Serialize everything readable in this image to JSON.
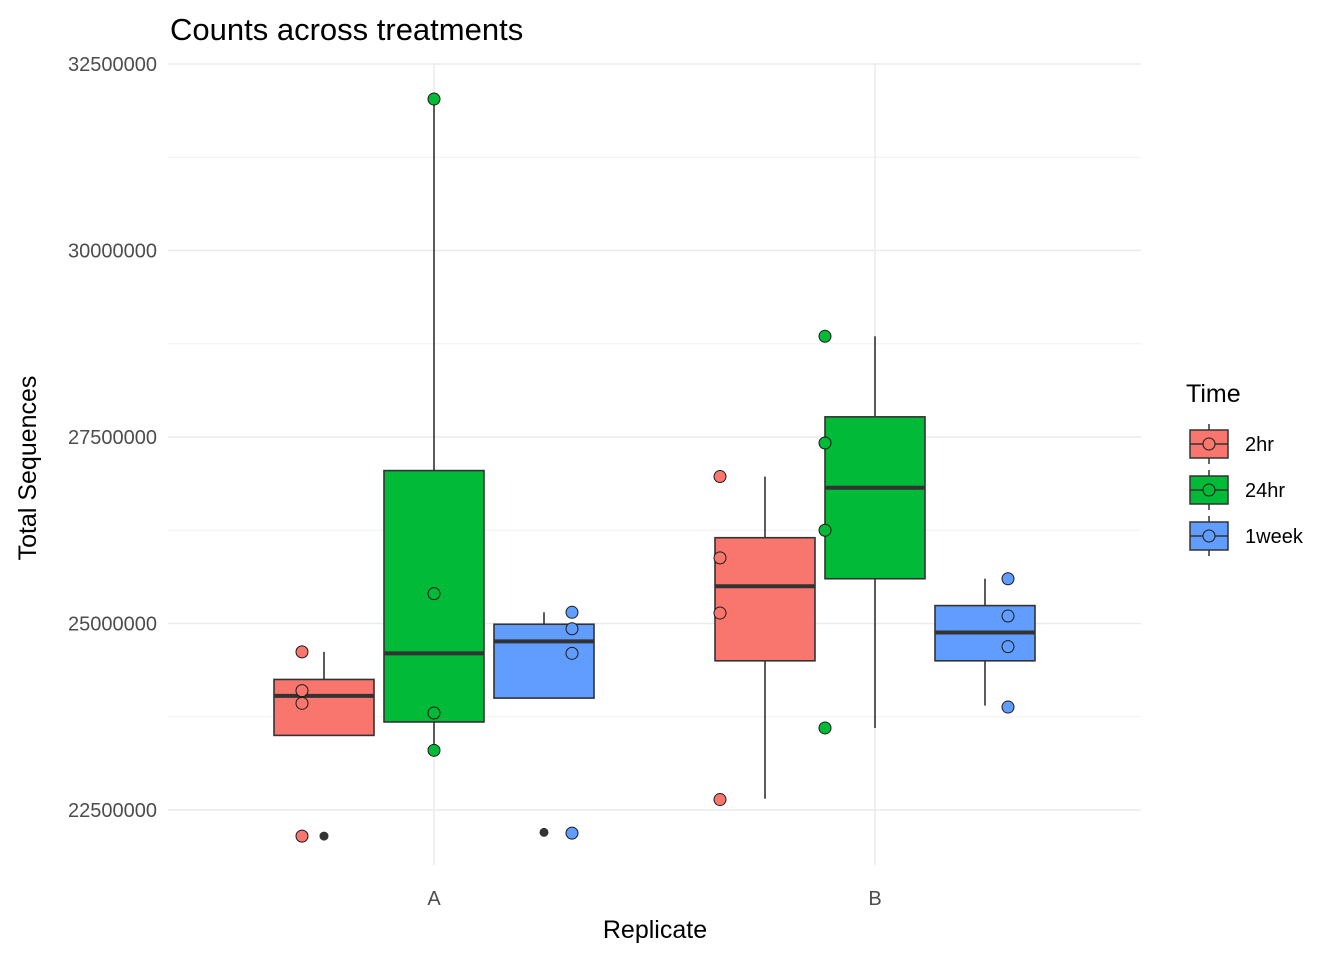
{
  "chart_data": {
    "type": "box",
    "title": "Counts across treatments",
    "xlabel": "Replicate",
    "ylabel": "Total Sequences",
    "categories": [
      "A",
      "B"
    ],
    "ylim": [
      21800000,
      32600000
    ],
    "yticks": [
      22500000,
      25000000,
      27500000,
      30000000,
      32500000
    ],
    "ytick_labels": [
      "22500000",
      "25000000",
      "27500000",
      "30000000",
      "32500000"
    ],
    "grid": true,
    "legend": {
      "title": "Time",
      "position": "right"
    },
    "series": [
      {
        "name": "2hr",
        "color": "#F8766D",
        "boxes": [
          {
            "category": "A",
            "whisker_low": 23500000,
            "q1": 23500000,
            "median": 24030000,
            "q3": 24250000,
            "whisker_high": 24620000,
            "outliers": [
              22150000
            ],
            "points": [
              24620000,
              24100000,
              23930000,
              22150000
            ]
          },
          {
            "category": "B",
            "whisker_low": 22650000,
            "q1": 24500000,
            "median": 25500000,
            "q3": 26150000,
            "whisker_high": 26970000,
            "outliers": [],
            "points": [
              26970000,
              25880000,
              25140000,
              22640000
            ]
          }
        ]
      },
      {
        "name": "24hr",
        "color": "#00BA38",
        "boxes": [
          {
            "category": "A",
            "whisker_low": 23300000,
            "q1": 23680000,
            "median": 24600000,
            "q3": 27050000,
            "whisker_high": 32030000,
            "outliers": [],
            "points": [
              32030000,
              25400000,
              23800000,
              23300000
            ]
          },
          {
            "category": "B",
            "whisker_low": 23600000,
            "q1": 25600000,
            "median": 26820000,
            "q3": 27770000,
            "whisker_high": 28850000,
            "outliers": [],
            "points": [
              28850000,
              27420000,
              26250000,
              23600000
            ]
          }
        ]
      },
      {
        "name": "1week",
        "color": "#619CFF",
        "boxes": [
          {
            "category": "A",
            "whisker_low": 24000000,
            "q1": 24000000,
            "median": 24760000,
            "q3": 24990000,
            "whisker_high": 25150000,
            "outliers": [
              22200000
            ],
            "points": [
              25150000,
              24930000,
              24600000,
              22190000
            ]
          },
          {
            "category": "B",
            "whisker_low": 23900000,
            "q1": 24500000,
            "median": 24880000,
            "q3": 25240000,
            "whisker_high": 25600000,
            "outliers": [],
            "points": [
              25600000,
              25100000,
              24690000,
              23880000
            ]
          }
        ]
      }
    ]
  }
}
